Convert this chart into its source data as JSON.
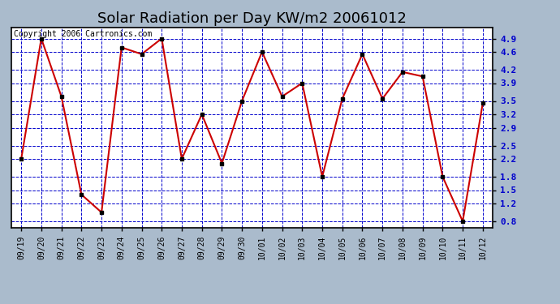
{
  "title": "Solar Radiation per Day KW/m2 20061012",
  "copyright_text": "Copyright 2006 Cartronics.com",
  "dates": [
    "09/19",
    "09/20",
    "09/21",
    "09/22",
    "09/23",
    "09/24",
    "09/25",
    "09/26",
    "09/27",
    "09/28",
    "09/29",
    "09/30",
    "10/01",
    "10/02",
    "10/03",
    "10/04",
    "10/05",
    "10/06",
    "10/07",
    "10/08",
    "10/09",
    "10/10",
    "10/11",
    "10/12"
  ],
  "values": [
    2.2,
    4.9,
    3.6,
    1.4,
    1.0,
    4.7,
    4.55,
    4.9,
    2.2,
    3.2,
    2.1,
    3.5,
    4.6,
    3.6,
    3.9,
    1.8,
    3.55,
    4.55,
    3.55,
    4.15,
    4.05,
    1.8,
    0.8,
    3.45
  ],
  "ylim": [
    0.65,
    5.15
  ],
  "yticks": [
    0.8,
    1.2,
    1.5,
    1.8,
    2.2,
    2.5,
    2.9,
    3.2,
    3.5,
    3.9,
    4.2,
    4.6,
    4.9
  ],
  "line_color": "#cc0000",
  "marker_color": "#000000",
  "bg_color": "#aabbcc",
  "plot_bg_color": "#ffffff",
  "grid_color": "#0000cc",
  "title_fontsize": 13,
  "copyright_fontsize": 7,
  "yticklabel_color": "#0000cc",
  "xticklabel_color": "#000000"
}
